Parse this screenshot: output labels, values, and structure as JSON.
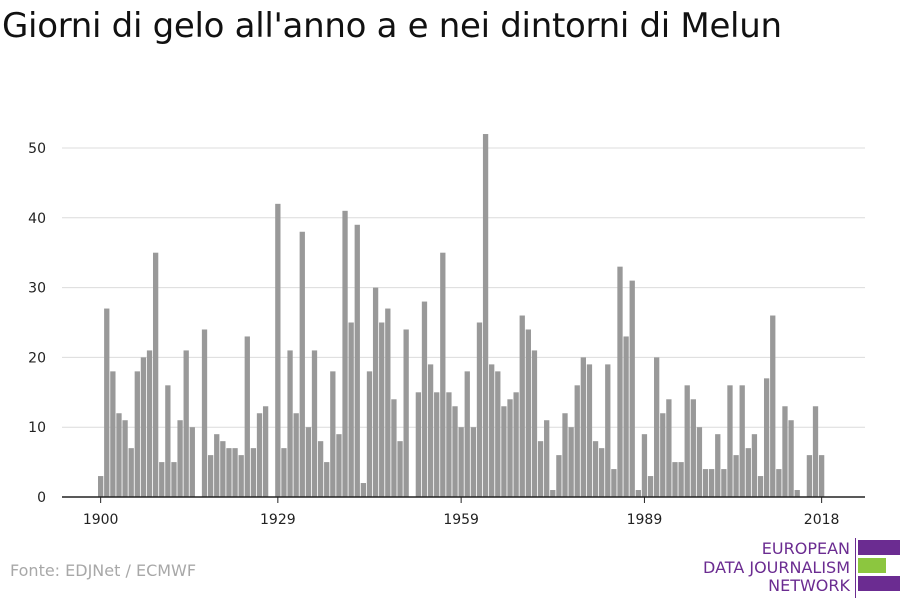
{
  "title": "Giorni di gelo all'anno a e nei dintorni di Melun",
  "source": "Fonte: EDJNet / ECMWF",
  "logo": {
    "lines": [
      "EUROPEAN",
      "DATA JOURNALISM",
      "NETWORK"
    ],
    "colors": {
      "purple": "#6b2c91",
      "green": "#8cc63f"
    }
  },
  "chart_data": {
    "type": "bar",
    "title": "Giorni di gelo all'anno a e nei dintorni di Melun",
    "xlabel": "",
    "ylabel": "",
    "ylim": [
      0,
      52
    ],
    "yticks": [
      0,
      10,
      20,
      30,
      40,
      50
    ],
    "xticks": [
      1900,
      1929,
      1959,
      1989,
      2018
    ],
    "grid": true,
    "bar_color": "#999999",
    "x": [
      1900,
      1901,
      1902,
      1903,
      1904,
      1905,
      1906,
      1907,
      1908,
      1909,
      1910,
      1911,
      1912,
      1913,
      1914,
      1915,
      1916,
      1917,
      1918,
      1919,
      1920,
      1921,
      1922,
      1923,
      1924,
      1925,
      1926,
      1927,
      1928,
      1929,
      1930,
      1931,
      1932,
      1933,
      1934,
      1935,
      1936,
      1937,
      1938,
      1939,
      1940,
      1941,
      1942,
      1943,
      1944,
      1945,
      1946,
      1947,
      1948,
      1949,
      1950,
      1951,
      1952,
      1953,
      1954,
      1955,
      1956,
      1957,
      1958,
      1959,
      1960,
      1961,
      1962,
      1963,
      1964,
      1965,
      1966,
      1967,
      1968,
      1969,
      1970,
      1971,
      1972,
      1973,
      1974,
      1975,
      1976,
      1977,
      1978,
      1979,
      1980,
      1981,
      1982,
      1983,
      1984,
      1985,
      1986,
      1987,
      1988,
      1989,
      1990,
      1991,
      1992,
      1993,
      1994,
      1995,
      1996,
      1997,
      1998,
      1999,
      2000,
      2001,
      2002,
      2003,
      2004,
      2005,
      2006,
      2007,
      2008,
      2009,
      2010,
      2011,
      2012,
      2013,
      2014,
      2015,
      2016,
      2017,
      2018
    ],
    "values": [
      3,
      27,
      18,
      12,
      11,
      7,
      18,
      20,
      21,
      35,
      5,
      16,
      5,
      11,
      21,
      10,
      0,
      24,
      6,
      9,
      8,
      7,
      7,
      6,
      23,
      7,
      12,
      13,
      0,
      42,
      7,
      21,
      12,
      38,
      10,
      21,
      8,
      5,
      18,
      9,
      41,
      25,
      39,
      2,
      18,
      30,
      25,
      27,
      14,
      8,
      24,
      0,
      15,
      28,
      19,
      15,
      35,
      15,
      13,
      10,
      18,
      10,
      25,
      52,
      19,
      18,
      13,
      14,
      15,
      26,
      24,
      21,
      8,
      11,
      1,
      6,
      12,
      10,
      16,
      20,
      19,
      8,
      7,
      19,
      4,
      33,
      23,
      31,
      1,
      9,
      3,
      20,
      12,
      14,
      5,
      5,
      16,
      14,
      10,
      4,
      4,
      9,
      4,
      16,
      6,
      16,
      7,
      9,
      3,
      17,
      26,
      4,
      13,
      11,
      1,
      0,
      6,
      13,
      6
    ]
  }
}
